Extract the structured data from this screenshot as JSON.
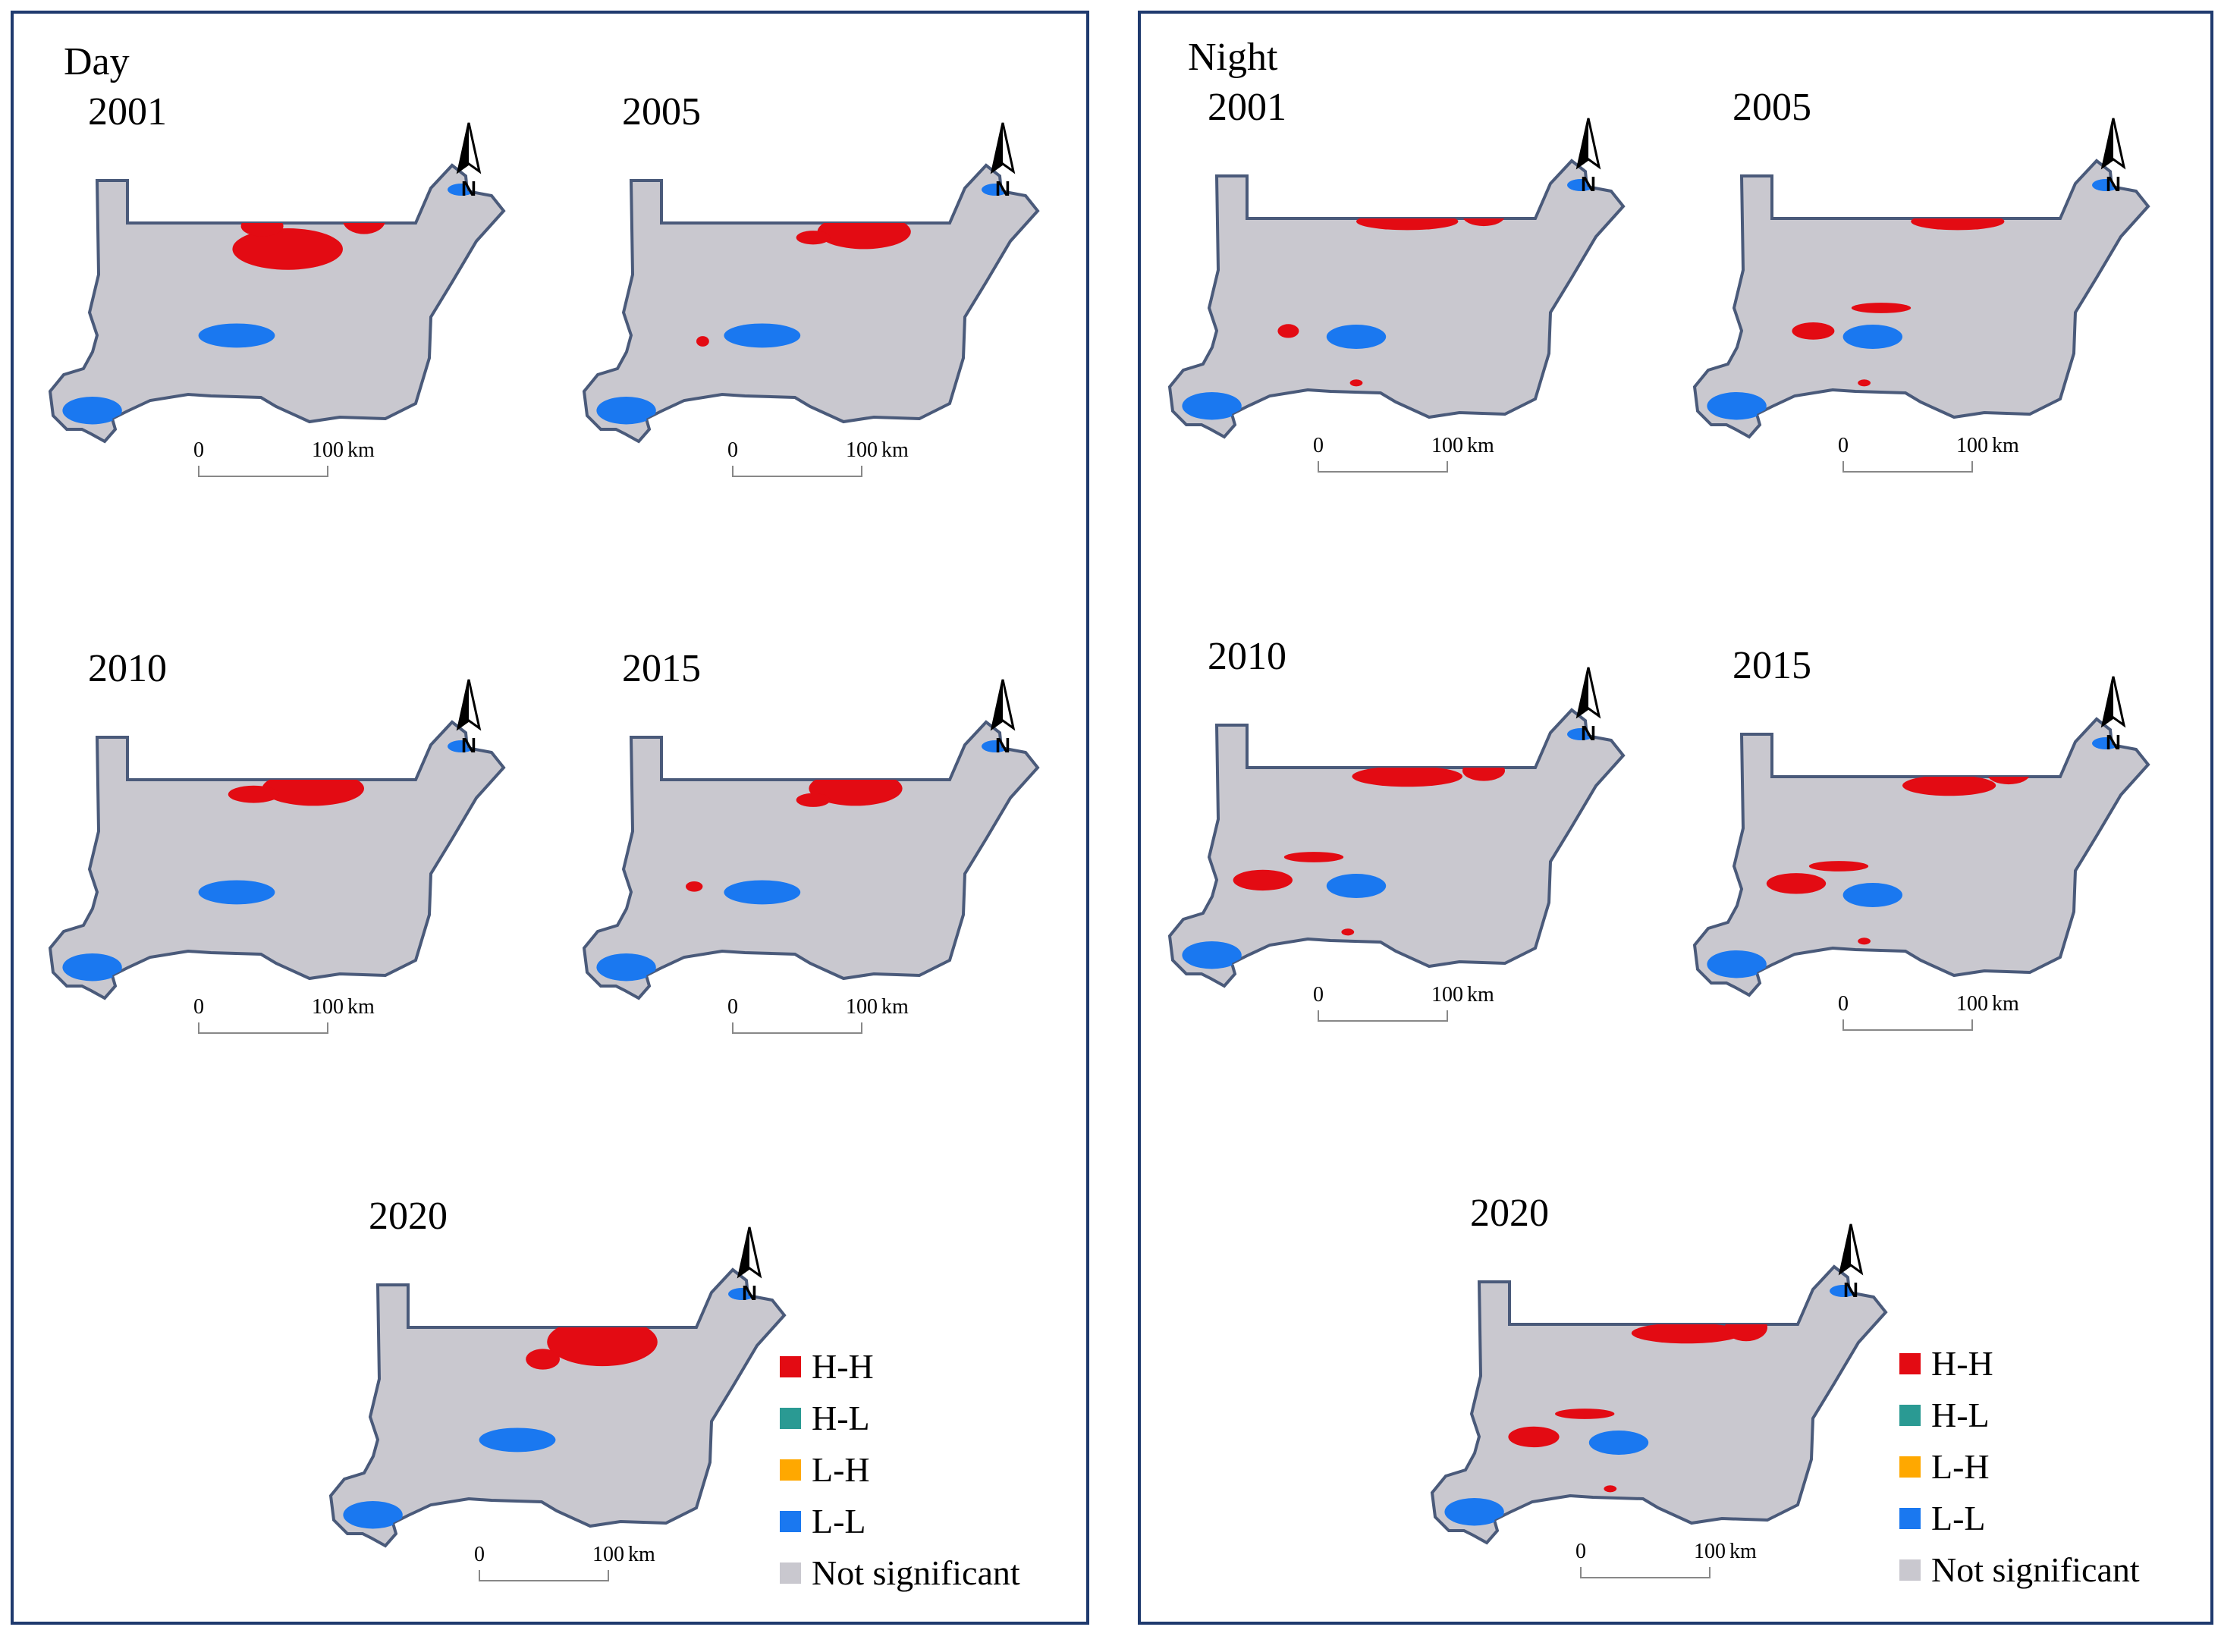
{
  "figure": {
    "panels": [
      {
        "title": "Day",
        "maps": [
          {
            "year": "2001",
            "hh": [
              [
                0.52,
                0.28,
                0.26,
                0.12
              ],
              [
                0.46,
                0.2,
                0.1,
                0.06
              ],
              [
                0.7,
                0.18,
                0.1,
                0.08
              ]
            ],
            "ll": [
              [
                0.4,
                0.58,
                0.18,
                0.07
              ],
              [
                0.06,
                0.84,
                0.14,
                0.08
              ]
            ]
          },
          {
            "year": "2005",
            "hh": [
              [
                0.62,
                0.22,
                0.22,
                0.1
              ],
              [
                0.5,
                0.24,
                0.08,
                0.04
              ],
              [
                0.24,
                0.6,
                0.03,
                0.03
              ]
            ],
            "ll": [
              [
                0.38,
                0.58,
                0.18,
                0.07
              ],
              [
                0.06,
                0.84,
                0.14,
                0.08
              ]
            ]
          },
          {
            "year": "2010",
            "hh": [
              [
                0.58,
                0.22,
                0.24,
                0.1
              ],
              [
                0.44,
                0.24,
                0.12,
                0.05
              ]
            ],
            "ll": [
              [
                0.4,
                0.58,
                0.18,
                0.07
              ],
              [
                0.06,
                0.84,
                0.14,
                0.08
              ]
            ]
          },
          {
            "year": "2015",
            "hh": [
              [
                0.6,
                0.22,
                0.22,
                0.1
              ],
              [
                0.5,
                0.26,
                0.08,
                0.04
              ],
              [
                0.22,
                0.56,
                0.04,
                0.03
              ]
            ],
            "ll": [
              [
                0.38,
                0.58,
                0.18,
                0.07
              ],
              [
                0.06,
                0.84,
                0.14,
                0.08
              ]
            ]
          },
          {
            "year": "2020",
            "hh": [
              [
                0.6,
                0.24,
                0.26,
                0.14
              ],
              [
                0.46,
                0.3,
                0.08,
                0.06
              ]
            ],
            "ll": [
              [
                0.4,
                0.58,
                0.18,
                0.07
              ],
              [
                0.06,
                0.84,
                0.14,
                0.08
              ]
            ]
          }
        ],
        "legend": [
          {
            "label": "H-H",
            "color": "#e30b13"
          },
          {
            "label": "H-L",
            "color": "#2a9a93"
          },
          {
            "label": "L-H",
            "color": "#ffa800"
          },
          {
            "label": "L-L",
            "color": "#1a78f0"
          },
          {
            "label": "Not significant",
            "color": "#c9c8cf"
          }
        ]
      },
      {
        "title": "Night",
        "maps": [
          {
            "year": "2001",
            "hh": [
              [
                0.52,
                0.2,
                0.24,
                0.05
              ],
              [
                0.7,
                0.18,
                0.1,
                0.06
              ],
              [
                0.24,
                0.58,
                0.05,
                0.04
              ],
              [
                0.4,
                0.76,
                0.03,
                0.02
              ]
            ],
            "ll": [
              [
                0.4,
                0.6,
                0.14,
                0.07
              ],
              [
                0.06,
                0.84,
                0.14,
                0.08
              ]
            ]
          },
          {
            "year": "2005",
            "hh": [
              [
                0.58,
                0.2,
                0.22,
                0.05
              ],
              [
                0.24,
                0.58,
                0.1,
                0.05
              ],
              [
                0.4,
                0.5,
                0.14,
                0.03
              ],
              [
                0.36,
                0.76,
                0.03,
                0.02
              ]
            ],
            "ll": [
              [
                0.38,
                0.6,
                0.14,
                0.07
              ],
              [
                0.06,
                0.84,
                0.14,
                0.08
              ]
            ]
          },
          {
            "year": "2010",
            "hh": [
              [
                0.52,
                0.22,
                0.26,
                0.06
              ],
              [
                0.7,
                0.2,
                0.1,
                0.06
              ],
              [
                0.18,
                0.58,
                0.14,
                0.06
              ],
              [
                0.3,
                0.5,
                0.14,
                0.03
              ],
              [
                0.38,
                0.76,
                0.03,
                0.02
              ]
            ],
            "ll": [
              [
                0.4,
                0.6,
                0.14,
                0.07
              ],
              [
                0.06,
                0.84,
                0.14,
                0.08
              ]
            ]
          },
          {
            "year": "2015",
            "hh": [
              [
                0.56,
                0.22,
                0.22,
                0.06
              ],
              [
                0.7,
                0.18,
                0.1,
                0.06
              ],
              [
                0.2,
                0.56,
                0.14,
                0.06
              ],
              [
                0.3,
                0.5,
                0.14,
                0.03
              ],
              [
                0.36,
                0.76,
                0.03,
                0.02
              ]
            ],
            "ll": [
              [
                0.38,
                0.6,
                0.14,
                0.07
              ],
              [
                0.06,
                0.84,
                0.14,
                0.08
              ]
            ]
          },
          {
            "year": "2020",
            "hh": [
              [
                0.56,
                0.22,
                0.26,
                0.06
              ],
              [
                0.7,
                0.2,
                0.1,
                0.08
              ],
              [
                0.2,
                0.58,
                0.12,
                0.06
              ],
              [
                0.32,
                0.5,
                0.14,
                0.03
              ],
              [
                0.38,
                0.76,
                0.03,
                0.02
              ]
            ],
            "ll": [
              [
                0.4,
                0.6,
                0.14,
                0.07
              ],
              [
                0.06,
                0.84,
                0.14,
                0.08
              ]
            ]
          }
        ],
        "legend": [
          {
            "label": "H-H",
            "color": "#e30b13"
          },
          {
            "label": "H-L",
            "color": "#2a9a93"
          },
          {
            "label": "L-H",
            "color": "#ffa800"
          },
          {
            "label": "L-L",
            "color": "#1a78f0"
          },
          {
            "label": "Not significant",
            "color": "#c9c8cf"
          }
        ]
      }
    ],
    "scale_bar": {
      "start": "0",
      "end": "100",
      "unit": "km"
    },
    "north_arrow": {
      "label": "N",
      "icon": "north-arrow-icon"
    },
    "colors": {
      "panel_border": "#1f3a6e",
      "base_fill": "#c9c8cf",
      "outline": "#4a5a7a",
      "hh": "#e30b13",
      "ll": "#1a78f0"
    }
  }
}
